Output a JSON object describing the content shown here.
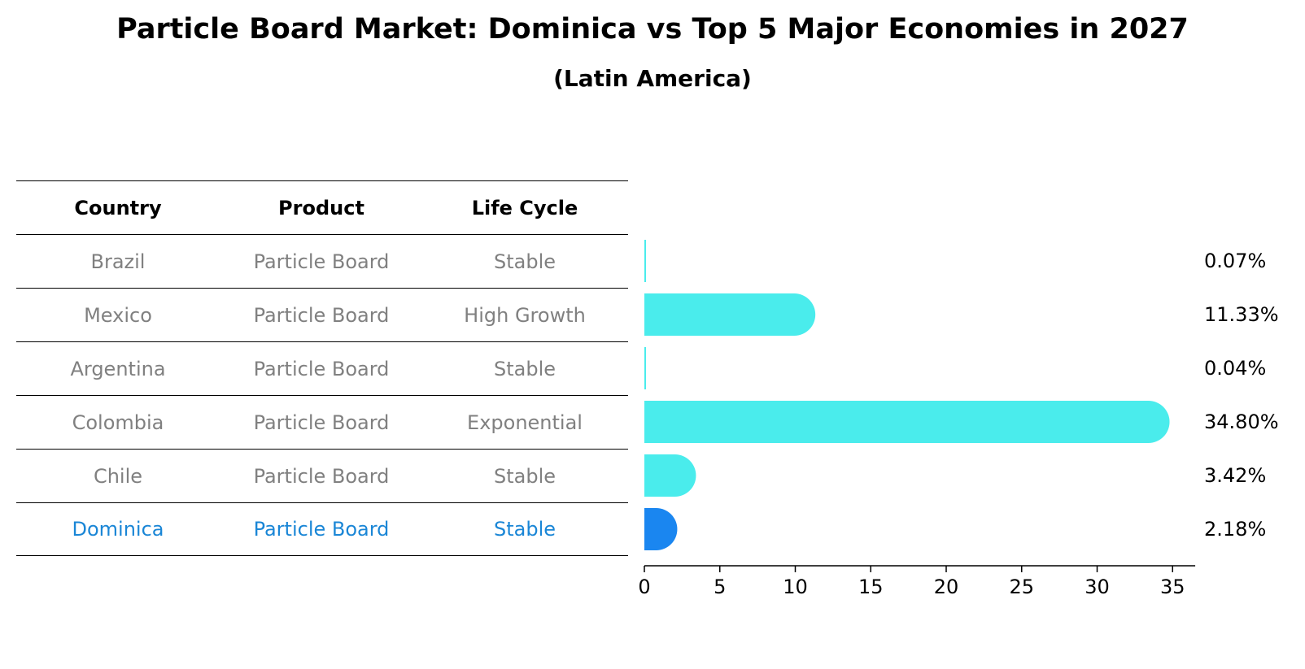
{
  "title": "Particle Board Market: Dominica vs Top 5 Major Economies in 2027",
  "subtitle": "(Latin America)",
  "table": {
    "headers": [
      "Country",
      "Product",
      "Life Cycle"
    ],
    "rows": [
      {
        "country": "Brazil",
        "product": "Particle Board",
        "life_cycle": "Stable"
      },
      {
        "country": "Mexico",
        "product": "Particle Board",
        "life_cycle": "High Growth"
      },
      {
        "country": "Argentina",
        "product": "Particle Board",
        "life_cycle": "Stable"
      },
      {
        "country": "Colombia",
        "product": "Particle Board",
        "life_cycle": "Exponential"
      },
      {
        "country": "Chile",
        "product": "Particle Board",
        "life_cycle": "Stable"
      },
      {
        "country": "Dominica",
        "product": "Particle Board",
        "life_cycle": "Stable"
      }
    ]
  },
  "colors": {
    "bar": "#4aecec",
    "highlight": "#1a86f0",
    "highlight_text": "#1a86d6",
    "muted_text": "#808080"
  },
  "chart_data": {
    "type": "bar",
    "orientation": "horizontal",
    "categories": [
      "Brazil",
      "Mexico",
      "Argentina",
      "Colombia",
      "Chile",
      "Dominica"
    ],
    "values": [
      0.07,
      11.33,
      0.04,
      34.8,
      3.42,
      2.18
    ],
    "labels": [
      "0.07%",
      "11.33%",
      "0.04%",
      "34.80%",
      "3.42%",
      "2.18%"
    ],
    "highlight": "Dominica",
    "xlim": [
      0,
      36.5
    ],
    "xticks": [
      0,
      5,
      10,
      15,
      20,
      25,
      30,
      35
    ],
    "title": "Particle Board Market: Dominica vs Top 5 Major Economies in 2027",
    "xlabel": "",
    "ylabel": ""
  }
}
